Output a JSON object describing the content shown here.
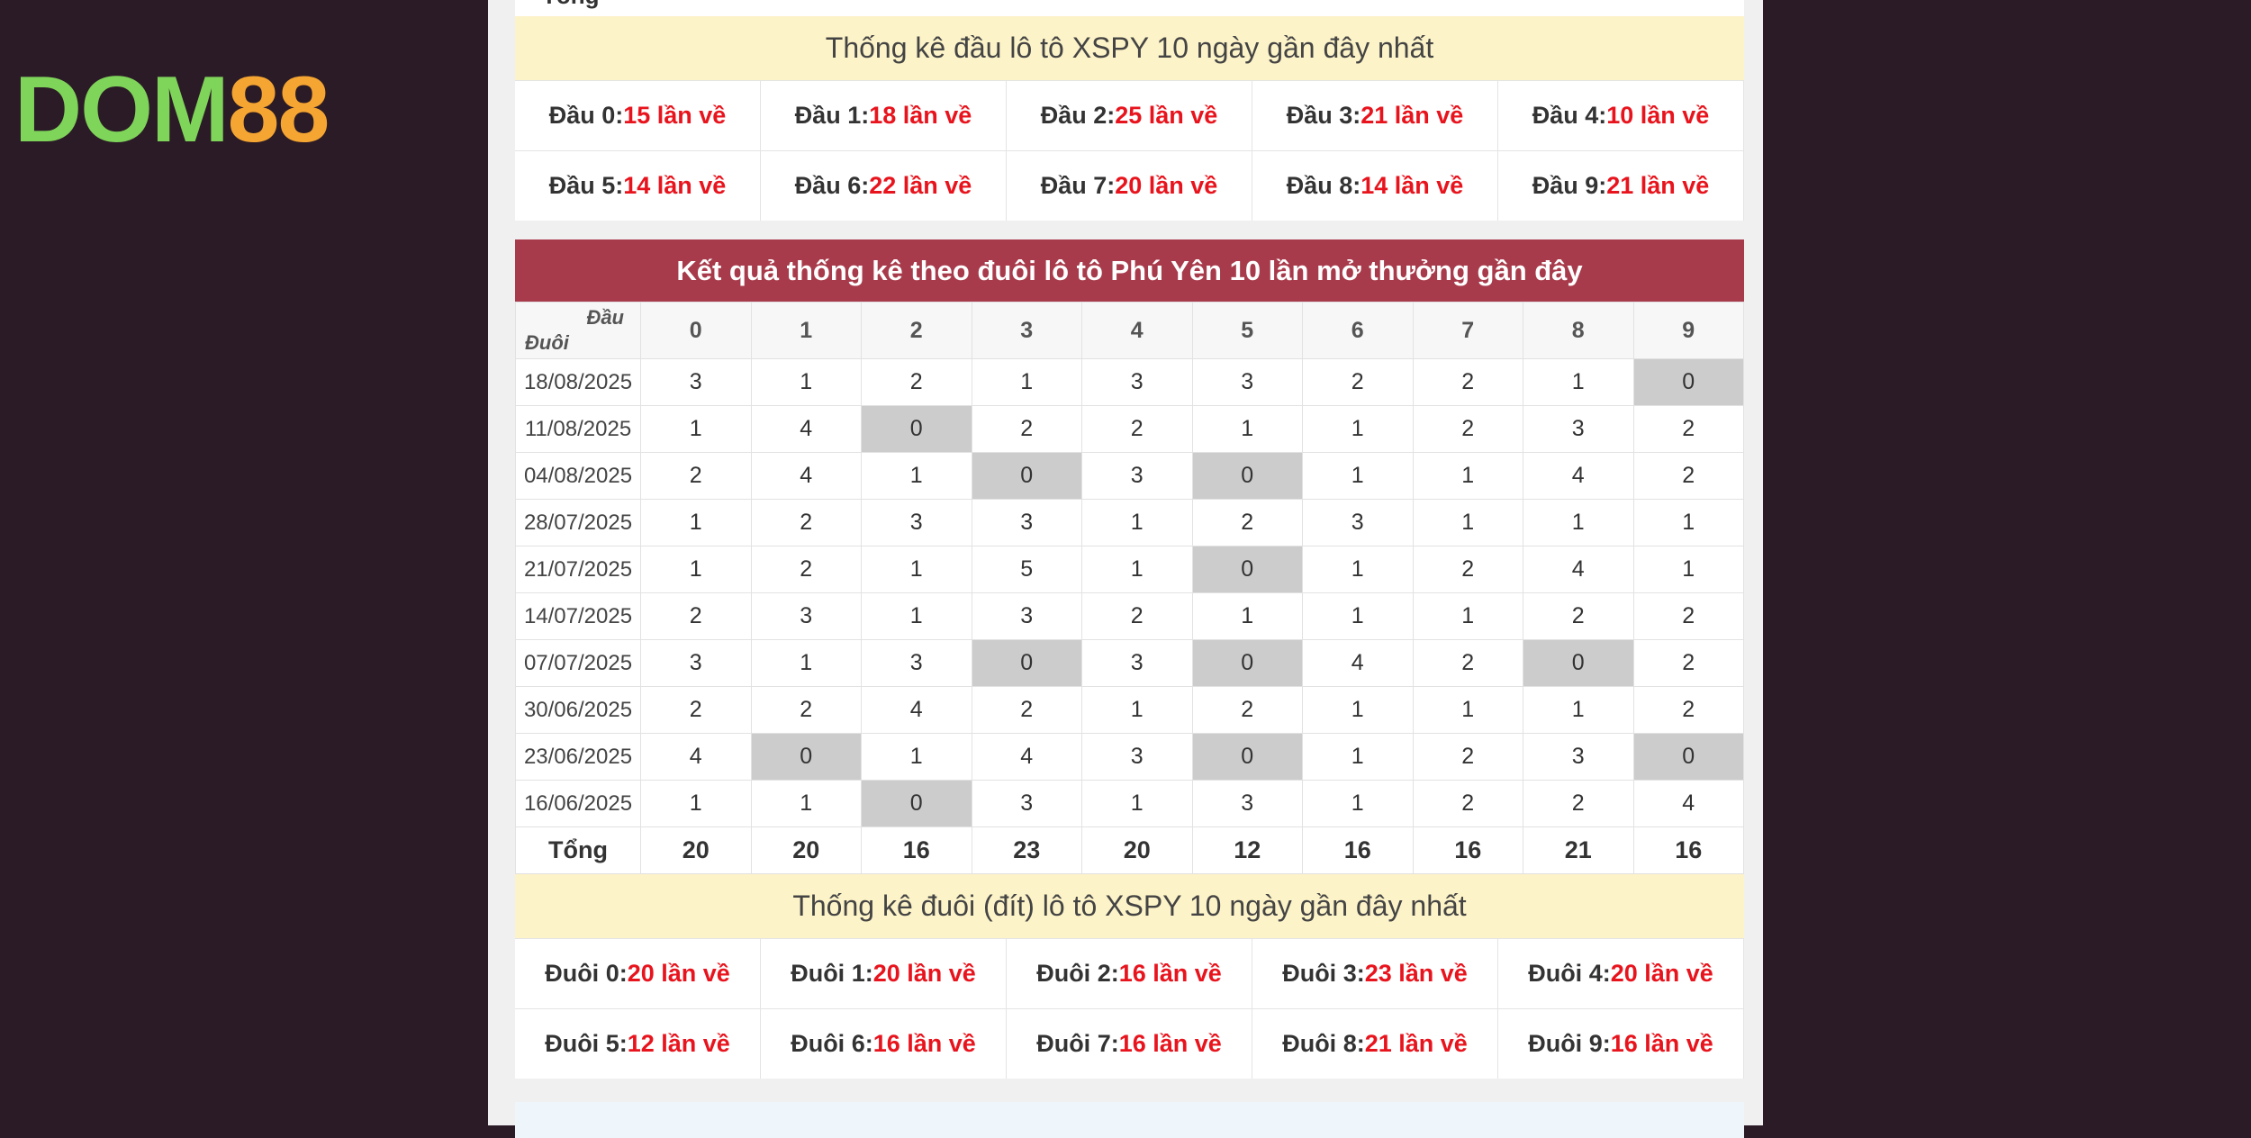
{
  "logo": {
    "parts": [
      "DOM",
      "88"
    ]
  },
  "prev_table_tail": {
    "label": "Tổng"
  },
  "head_stats": {
    "title": "Thống kê đầu lô tô XSPY 10 ngày gần đây nhất",
    "items": [
      {
        "label": "Đầu 0:",
        "value": "15 lần về"
      },
      {
        "label": "Đầu 1:",
        "value": "18 lần về"
      },
      {
        "label": "Đầu 2:",
        "value": "25 lần về"
      },
      {
        "label": "Đầu 3:",
        "value": "21 lần về"
      },
      {
        "label": "Đầu 4:",
        "value": "10 lần về"
      },
      {
        "label": "Đầu 5:",
        "value": "14 lần về"
      },
      {
        "label": "Đầu 6:",
        "value": "22 lần về"
      },
      {
        "label": "Đầu 7:",
        "value": "20 lần về"
      },
      {
        "label": "Đầu 8:",
        "value": "14 lần về"
      },
      {
        "label": "Đầu 9:",
        "value": "21 lần về"
      }
    ]
  },
  "table": {
    "title": "Kết quả thống kê theo đuôi lô tô Phú Yên 10 lần mở thưởng gần đây",
    "corner_top": "Đầu",
    "corner_bottom": "Đuôi",
    "columns": [
      "0",
      "1",
      "2",
      "3",
      "4",
      "5",
      "6",
      "7",
      "8",
      "9"
    ],
    "rows": [
      {
        "date": "18/08/2025",
        "values": [
          3,
          1,
          2,
          1,
          3,
          3,
          2,
          2,
          1,
          0
        ]
      },
      {
        "date": "11/08/2025",
        "values": [
          1,
          4,
          0,
          2,
          2,
          1,
          1,
          2,
          3,
          2
        ]
      },
      {
        "date": "04/08/2025",
        "values": [
          2,
          4,
          1,
          0,
          3,
          0,
          1,
          1,
          4,
          2
        ]
      },
      {
        "date": "28/07/2025",
        "values": [
          1,
          2,
          3,
          3,
          1,
          2,
          3,
          1,
          1,
          1
        ]
      },
      {
        "date": "21/07/2025",
        "values": [
          1,
          2,
          1,
          5,
          1,
          0,
          1,
          2,
          4,
          1
        ]
      },
      {
        "date": "14/07/2025",
        "values": [
          2,
          3,
          1,
          3,
          2,
          1,
          1,
          1,
          2,
          2
        ]
      },
      {
        "date": "07/07/2025",
        "values": [
          3,
          1,
          3,
          0,
          3,
          0,
          4,
          2,
          0,
          2
        ]
      },
      {
        "date": "30/06/2025",
        "values": [
          2,
          2,
          4,
          2,
          1,
          2,
          1,
          1,
          1,
          2
        ]
      },
      {
        "date": "23/06/2025",
        "values": [
          4,
          0,
          1,
          4,
          3,
          0,
          1,
          2,
          3,
          0
        ]
      },
      {
        "date": "16/06/2025",
        "values": [
          1,
          1,
          0,
          3,
          1,
          3,
          1,
          2,
          2,
          4
        ]
      }
    ],
    "total_label": "Tổng",
    "totals": [
      20,
      20,
      16,
      23,
      20,
      12,
      16,
      16,
      21,
      16
    ]
  },
  "tail_stats": {
    "title": "Thống kê đuôi (đít) lô tô XSPY 10 ngày gần đây nhất",
    "items": [
      {
        "label": "Đuôi 0:",
        "value": "20 lần về"
      },
      {
        "label": "Đuôi 1:",
        "value": "20 lần về"
      },
      {
        "label": "Đuôi 2:",
        "value": "16 lần về"
      },
      {
        "label": "Đuôi 3:",
        "value": "23 lần về"
      },
      {
        "label": "Đuôi 4:",
        "value": "20 lần về"
      },
      {
        "label": "Đuôi 5:",
        "value": "12 lần về"
      },
      {
        "label": "Đuôi 6:",
        "value": "16 lần về"
      },
      {
        "label": "Đuôi 7:",
        "value": "16 lần về"
      },
      {
        "label": "Đuôi 8:",
        "value": "21 lần về"
      },
      {
        "label": "Đuôi 9:",
        "value": "16 lần về"
      }
    ]
  }
}
